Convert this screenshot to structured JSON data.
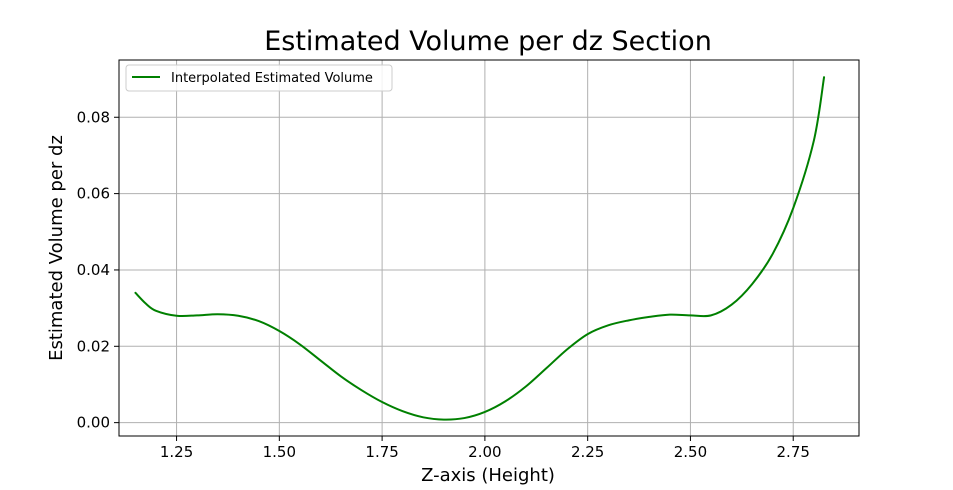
{
  "chart_data": {
    "type": "line",
    "title": "Estimated Volume per dz Section",
    "xlabel": "Z-axis (Height)",
    "ylabel": "Estimated Volume per dz",
    "xlim": [
      1.11,
      2.91
    ],
    "ylim": [
      -0.0035,
      0.095
    ],
    "xticks": [
      1.25,
      1.5,
      1.75,
      2.0,
      2.25,
      2.5,
      2.75
    ],
    "xtick_labels": [
      "1.25",
      "1.50",
      "1.75",
      "2.00",
      "2.25",
      "2.50",
      "2.75"
    ],
    "yticks": [
      0.0,
      0.02,
      0.04,
      0.06,
      0.08
    ],
    "ytick_labels": [
      "0.00",
      "0.02",
      "0.04",
      "0.06",
      "0.08"
    ],
    "grid": true,
    "legend_position": "top-left",
    "series": [
      {
        "name": "Interpolated Estimated Volume",
        "color": "#008000",
        "x": [
          1.15,
          1.175,
          1.2,
          1.25,
          1.3,
          1.35,
          1.4,
          1.45,
          1.5,
          1.55,
          1.6,
          1.65,
          1.7,
          1.75,
          1.8,
          1.85,
          1.9,
          1.95,
          2.0,
          2.05,
          2.1,
          2.15,
          2.2,
          2.25,
          2.3,
          2.35,
          2.4,
          2.45,
          2.5,
          2.55,
          2.6,
          2.65,
          2.7,
          2.75,
          2.8,
          2.825
        ],
        "y": [
          0.034,
          0.0312,
          0.0293,
          0.028,
          0.0281,
          0.0284,
          0.028,
          0.0266,
          0.024,
          0.0205,
          0.0163,
          0.0121,
          0.0085,
          0.0054,
          0.003,
          0.0014,
          0.0008,
          0.0012,
          0.0028,
          0.0056,
          0.0095,
          0.0143,
          0.0192,
          0.0232,
          0.0255,
          0.0268,
          0.0277,
          0.0283,
          0.0281,
          0.0281,
          0.0309,
          0.0363,
          0.0442,
          0.0562,
          0.0738,
          0.0905
        ]
      }
    ]
  }
}
